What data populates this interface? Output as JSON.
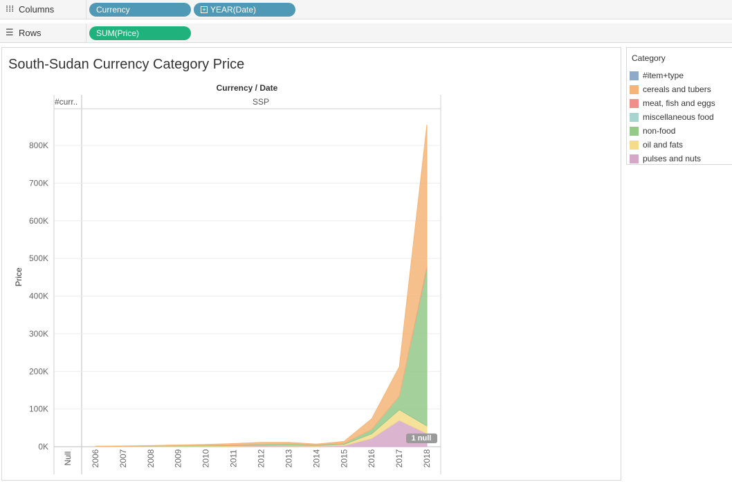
{
  "shelves": {
    "columns": {
      "label": "Columns",
      "icon": "columns-icon",
      "pills": [
        "Currency",
        "YEAR(Date)"
      ]
    },
    "rows": {
      "label": "Rows",
      "icon": "rows-icon",
      "pills": [
        "SUM(Price)"
      ]
    }
  },
  "worksheet": {
    "title": "South-Sudan Currency Category Price"
  },
  "legend": {
    "title": "Category",
    "items": [
      {
        "label": "#item+type",
        "color": "#8fa9c8"
      },
      {
        "label": "cereals and tubers",
        "color": "#f5b578"
      },
      {
        "label": "meat, fish and eggs",
        "color": "#ef8f8c"
      },
      {
        "label": "miscellaneous food",
        "color": "#a8d4cf"
      },
      {
        "label": "non-food",
        "color": "#94c98a"
      },
      {
        "label": "oil and fats",
        "color": "#f4dc8a"
      },
      {
        "label": "pulses and nuts",
        "color": "#d5a8c8"
      }
    ]
  },
  "chart_data": {
    "type": "area",
    "stacked": true,
    "header": "Currency / Date",
    "currency_headers": [
      "#curr..",
      "SSP"
    ],
    "null_column_label": "Null",
    "ylabel": "Price",
    "ylim": [
      0,
      870000
    ],
    "yticks": [
      0,
      100000,
      200000,
      300000,
      400000,
      500000,
      600000,
      700000,
      800000
    ],
    "ytick_labels": [
      "0K",
      "100K",
      "200K",
      "300K",
      "400K",
      "500K",
      "600K",
      "700K",
      "800K"
    ],
    "x": [
      "2006",
      "2007",
      "2008",
      "2009",
      "2010",
      "2011",
      "2012",
      "2013",
      "2014",
      "2015",
      "2016",
      "2017",
      "2018"
    ],
    "series": [
      {
        "name": "pulses and nuts",
        "color": "#d5a8c8",
        "values": [
          200,
          300,
          500,
          800,
          1000,
          1500,
          2000,
          2000,
          1500,
          3000,
          22000,
          70000,
          35000
        ]
      },
      {
        "name": "oil and fats",
        "color": "#f4dc8a",
        "values": [
          300,
          400,
          600,
          800,
          1000,
          1200,
          1500,
          2000,
          1500,
          3000,
          12000,
          28000,
          20000
        ]
      },
      {
        "name": "non-food",
        "color": "#94c98a",
        "values": [
          300,
          400,
          700,
          1000,
          1500,
          2000,
          3000,
          3500,
          2000,
          3000,
          12000,
          37000,
          420000
        ]
      },
      {
        "name": "miscellaneous food",
        "color": "#a8d4cf",
        "values": [
          0,
          0,
          0,
          0,
          0,
          0,
          0,
          0,
          0,
          0,
          0,
          0,
          0
        ]
      },
      {
        "name": "meat, fish and eggs",
        "color": "#ef8f8c",
        "values": [
          0,
          0,
          0,
          0,
          0,
          0,
          0,
          0,
          0,
          0,
          0,
          0,
          5000
        ]
      },
      {
        "name": "cereals and tubers",
        "color": "#f5b578",
        "values": [
          500,
          800,
          1200,
          2000,
          2500,
          3500,
          5000,
          4000,
          2000,
          5000,
          28000,
          77000,
          375000
        ]
      }
    ],
    "null_badge": "1 null",
    "grid": true
  }
}
